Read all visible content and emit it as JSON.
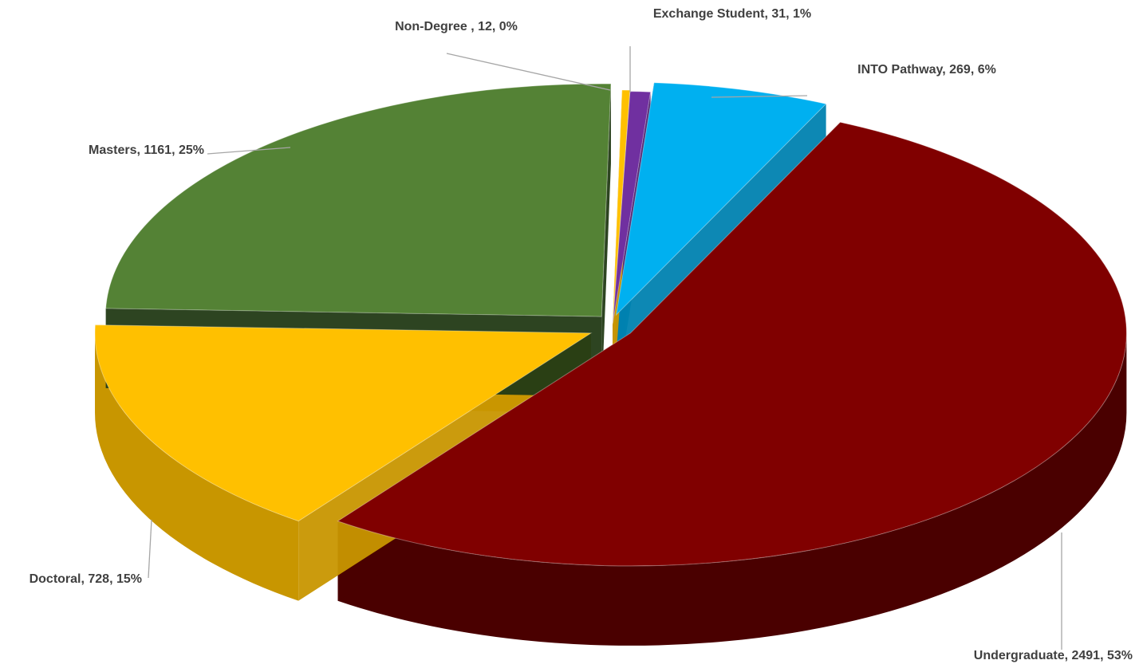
{
  "chart_data": {
    "type": "pie",
    "title": "",
    "three_d": true,
    "exploded": true,
    "legend": "none",
    "data_labels": "category, value, percentage",
    "slices": [
      {
        "name": "Exchange Student",
        "value": 31,
        "percent": "1%",
        "label": "Exchange Student, 31, 1%",
        "color": "#7030A0",
        "side_color": "#4B1F6E"
      },
      {
        "name": "INTO Pathway",
        "value": 269,
        "percent": "6%",
        "label": "INTO Pathway, 269, 6%",
        "color": "#00B0F0",
        "side_color": "#0082B0"
      },
      {
        "name": "Undergraduate",
        "value": 2491,
        "percent": "53%",
        "label": "Undergraduate, 2491, 53%",
        "color": "#800000",
        "side_color": "#4A0000"
      },
      {
        "name": "Doctoral",
        "value": 728,
        "percent": "15%",
        "label": "Doctoral, 728, 15%",
        "color": "#FFC000",
        "side_color": "#C89600"
      },
      {
        "name": "Masters",
        "value": 1161,
        "percent": "25%",
        "label": "Masters, 1161, 25%",
        "color": "#548235",
        "side_color": "#223A15"
      },
      {
        "name": "Non-Degree",
        "value": 12,
        "percent": "0%",
        "label": "Non-Degree , 12, 0%",
        "color": "#FFC000",
        "side_color": "#C89600"
      }
    ]
  }
}
